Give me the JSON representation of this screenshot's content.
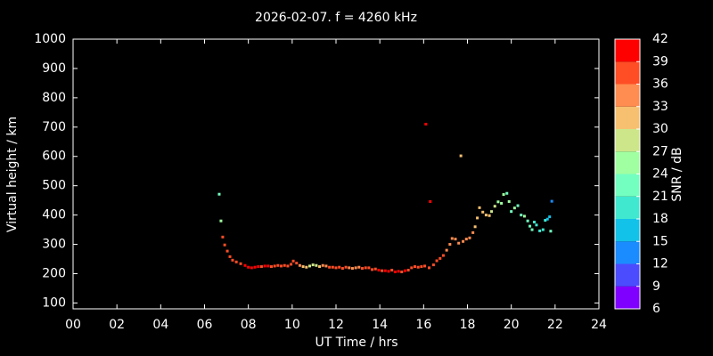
{
  "chart_data": {
    "type": "scatter",
    "title": "2026-02-07. f = 4260 kHz",
    "x_label": "UT Time / hrs",
    "y_label": "Virtual height / km",
    "xlim": [
      0,
      24
    ],
    "xticks": [
      {
        "value": 0,
        "label": "00"
      },
      {
        "value": 2,
        "label": "02"
      },
      {
        "value": 4,
        "label": "04"
      },
      {
        "value": 6,
        "label": "06"
      },
      {
        "value": 8,
        "label": "08"
      },
      10,
      12,
      14,
      16,
      18,
      20,
      22,
      24
    ],
    "ylim": [
      80,
      1000
    ],
    "yticks": [
      100,
      200,
      300,
      400,
      500,
      600,
      700,
      800,
      900,
      1000
    ],
    "colorbar": {
      "label": "SNR / dB",
      "ticks": [
        6,
        9,
        12,
        15,
        18,
        21,
        24,
        27,
        30,
        33,
        36,
        39,
        42
      ],
      "colors": [
        "#8000ff",
        "#4c4cff",
        "#1a8cff",
        "#13c2e8",
        "#40e8d0",
        "#73ffc0",
        "#a0ffa0",
        "#cde68a",
        "#f7c070",
        "#ff8c50",
        "#ff4d26",
        "#ff0000"
      ]
    },
    "series": [
      {
        "x": [
          6.67,
          6.75,
          6.83,
          6.92,
          7.04,
          7.16,
          7.28,
          7.45,
          7.65,
          7.85,
          8.0,
          8.15,
          8.3,
          8.45,
          8.6,
          8.75,
          8.9,
          9.05,
          9.2,
          9.35,
          9.5,
          9.65,
          9.8,
          9.95,
          10.05,
          10.2,
          10.35,
          10.5,
          10.65,
          10.8,
          10.95,
          11.1,
          11.25,
          11.4,
          11.55,
          11.7,
          11.85,
          12.0,
          12.15,
          12.3,
          12.45,
          12.6,
          12.75,
          12.9,
          13.05,
          13.2,
          13.35,
          13.5,
          13.65,
          13.8,
          13.95,
          14.1,
          14.25,
          14.4,
          14.55,
          14.7,
          14.85,
          15.0,
          15.15,
          15.3,
          15.45,
          15.6,
          15.75,
          15.9,
          16.05,
          16.1,
          16.25,
          16.3,
          16.45,
          16.6,
          16.75,
          16.9,
          17.05,
          17.2,
          17.3,
          17.45,
          17.6,
          17.7,
          17.8,
          17.95,
          18.1,
          18.25,
          18.35,
          18.45,
          18.55,
          18.7,
          18.85,
          19.0,
          19.1,
          19.25,
          19.4,
          19.55,
          19.65,
          19.8,
          19.9,
          20.0,
          20.15,
          20.3,
          20.45,
          20.6,
          20.75,
          20.85,
          20.95,
          21.05,
          21.15,
          21.3,
          21.45,
          21.55,
          21.65,
          21.75,
          21.8,
          21.85
        ],
        "y": [
          471,
          380,
          325,
          298,
          277,
          258,
          246,
          240,
          234,
          228,
          222,
          220,
          222,
          224,
          224,
          226,
          226,
          224,
          226,
          228,
          226,
          228,
          226,
          232,
          243,
          236,
          228,
          224,
          222,
          226,
          230,
          228,
          224,
          228,
          226,
          222,
          222,
          220,
          222,
          218,
          222,
          220,
          218,
          220,
          222,
          218,
          220,
          220,
          214,
          216,
          212,
          210,
          210,
          208,
          212,
          206,
          208,
          206,
          210,
          212,
          220,
          224,
          222,
          224,
          226,
          710,
          220,
          446,
          230,
          244,
          252,
          262,
          280,
          300,
          320,
          318,
          304,
          602,
          310,
          318,
          322,
          340,
          360,
          390,
          425,
          410,
          400,
          398,
          412,
          430,
          445,
          440,
          470,
          474,
          446,
          412,
          424,
          432,
          400,
          396,
          380,
          362,
          350,
          376,
          366,
          346,
          350,
          382,
          386,
          394,
          345,
          447
        ],
        "snr": [
          22,
          25,
          38,
          36,
          36,
          37,
          38,
          38,
          38,
          39,
          39,
          40,
          39,
          39,
          38,
          39,
          39,
          38,
          37,
          37,
          38,
          37,
          36,
          38,
          37,
          38,
          33,
          31,
          30,
          29,
          28,
          29,
          31,
          33,
          35,
          37,
          38,
          37,
          38,
          37,
          36,
          34,
          33,
          35,
          34,
          36,
          37,
          38,
          38,
          37,
          39,
          38,
          39,
          39,
          38,
          39,
          39,
          38,
          39,
          38,
          37,
          38,
          37,
          38,
          37,
          40,
          38,
          39,
          37,
          38,
          37,
          36,
          35,
          33,
          33,
          34,
          33,
          30,
          34,
          33,
          34,
          33,
          31,
          30,
          31,
          32,
          30,
          31,
          29,
          27,
          26,
          25,
          24,
          23,
          25,
          23,
          24,
          22,
          23,
          24,
          22,
          21,
          21,
          20,
          19,
          20,
          19,
          18,
          17,
          16,
          23,
          13
        ]
      }
    ]
  }
}
